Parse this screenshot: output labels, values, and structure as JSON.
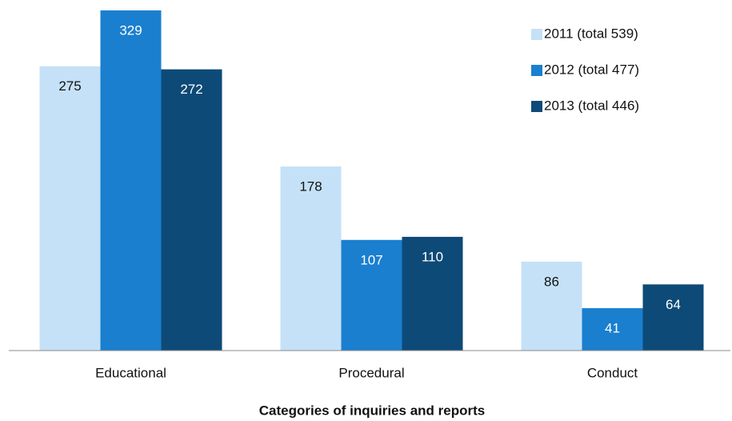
{
  "chart_data": {
    "type": "bar",
    "x_label": "Categories of inquiries and reports",
    "categories": [
      "Educational",
      "Procedural",
      "Conduct"
    ],
    "series": [
      {
        "name": "2011 (total 539)",
        "color": "#c5e1f7",
        "values": [
          275,
          178,
          86
        ]
      },
      {
        "name": "2012 (total 477)",
        "color": "#1a7fcf",
        "values": [
          329,
          107,
          41
        ]
      },
      {
        "name": "2013 (total 446)",
        "color": "#0d4a77",
        "values": [
          272,
          110,
          64
        ]
      }
    ],
    "ylim": [
      0,
      329
    ],
    "legend": "upper right"
  }
}
